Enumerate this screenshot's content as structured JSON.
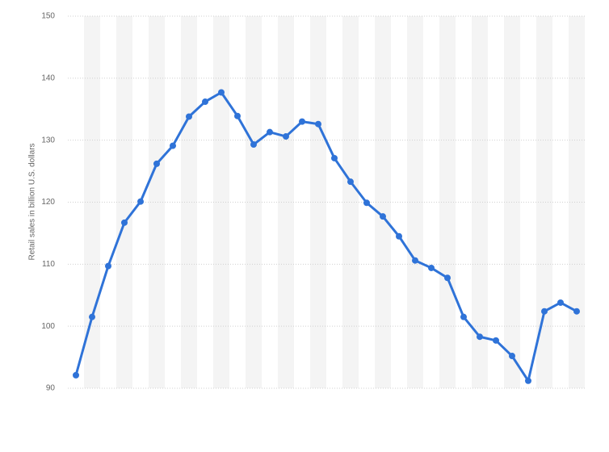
{
  "chart_data": {
    "type": "line",
    "y_label": "Retail sales in billion U.S. dollars",
    "categories": [
      null,
      null,
      null,
      null,
      null,
      null,
      null,
      null,
      null,
      null,
      null,
      null,
      null,
      null,
      null,
      null,
      null,
      null,
      null,
      null,
      null,
      null,
      null,
      null,
      null,
      null,
      null,
      null,
      null,
      null,
      null,
      null
    ],
    "series": [
      {
        "name": null,
        "color": "#2f73d8",
        "values": [
          92.1,
          101.5,
          109.7,
          116.7,
          120.1,
          126.2,
          129.1,
          133.8,
          136.2,
          137.7,
          133.9,
          129.3,
          131.3,
          130.6,
          133.0,
          132.6,
          127.1,
          123.3,
          119.9,
          117.7,
          114.5,
          110.6,
          109.4,
          107.8,
          101.5,
          98.3,
          97.7,
          95.2,
          91.2,
          102.4,
          103.8,
          102.4
        ]
      }
    ],
    "ylim": [
      90,
      150
    ],
    "yticks": [
      90,
      100,
      110,
      120,
      130,
      140,
      150
    ],
    "grid": true
  }
}
